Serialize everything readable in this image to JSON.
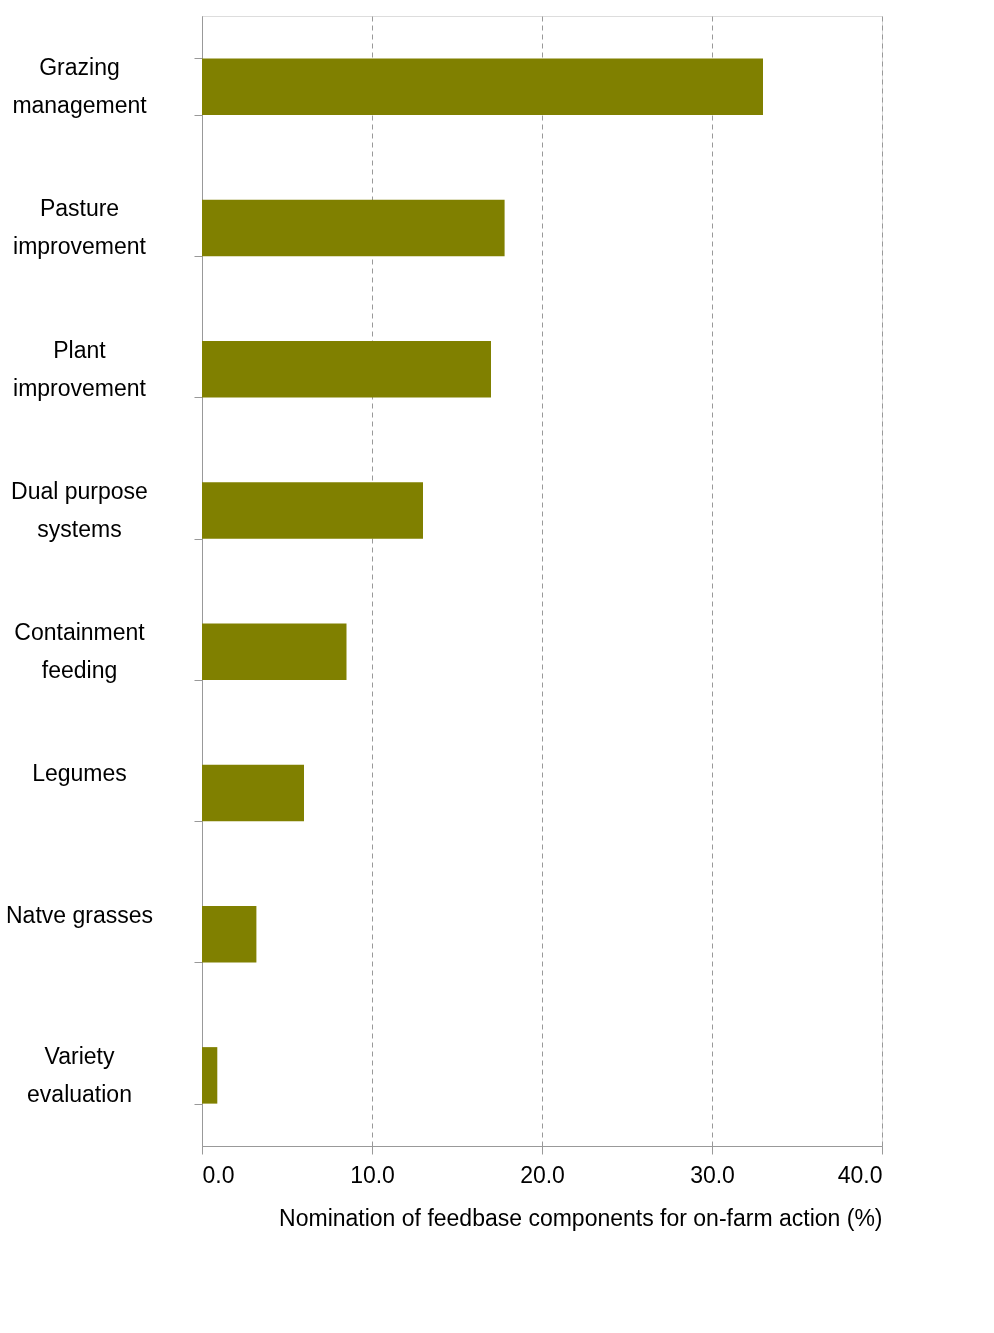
{
  "chart_data": {
    "type": "bar",
    "orientation": "horizontal",
    "categories": [
      "Grazing management",
      "Pasture improvement",
      "Plant improvement",
      "Dual purpose systems",
      "Containment feeding",
      "Legumes",
      "Natve grasses",
      "Variety evaluation"
    ],
    "values": [
      33.0,
      17.8,
      17.0,
      13.0,
      8.5,
      6.0,
      3.2,
      0.9
    ],
    "color": "#808000",
    "xlim": [
      0,
      40
    ],
    "xticks": [
      {
        "value": 0,
        "label": "0.0"
      },
      {
        "value": 10,
        "label": "10.0"
      },
      {
        "value": 20,
        "label": "20.0"
      },
      {
        "value": 30,
        "label": "30.0"
      },
      {
        "value": 40,
        "label": "40.0"
      }
    ],
    "xlabel": "Nomination of feedbase components for on-farm action (%)",
    "grid": "x"
  }
}
